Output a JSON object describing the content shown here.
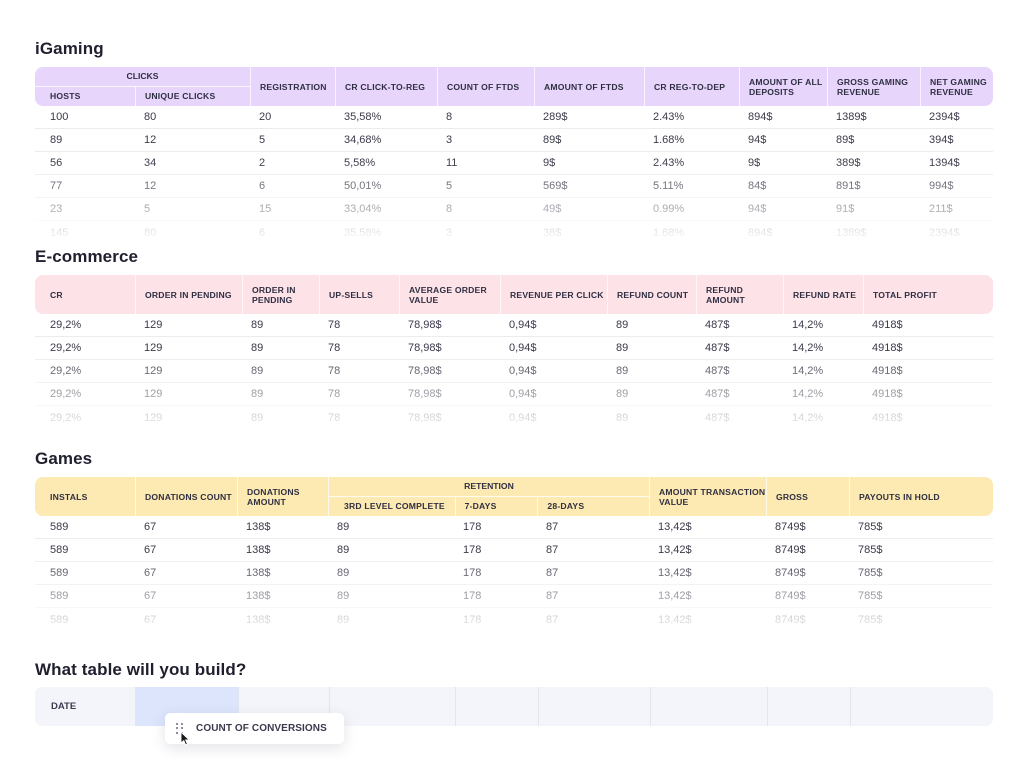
{
  "igaming": {
    "title": "iGaming",
    "clicks_group": "CLICKS",
    "headers": [
      "HOSTS",
      "UNIQUE CLICKS",
      "REGISTRATION",
      "CR CLICK-TO-REG",
      "COUNT OF FTDS",
      "AMOUNT OF FTDS",
      "CR REG-TO-DEP",
      "AMOUNT OF ALL DEPOSITS",
      "GROSS GAMING REVENUE",
      "NET GAMING REVENUE"
    ],
    "rows": [
      [
        "100",
        "80",
        "20",
        "35,58%",
        "8",
        "289$",
        "2.43%",
        "894$",
        "1389$",
        "2394$"
      ],
      [
        "89",
        "12",
        "5",
        "34,68%",
        "3",
        "89$",
        "1.68%",
        "94$",
        "89$",
        "394$"
      ],
      [
        "56",
        "34",
        "2",
        "5,58%",
        "11",
        "9$",
        "2.43%",
        "9$",
        "389$",
        "1394$"
      ],
      [
        "77",
        "12",
        "6",
        "50,01%",
        "5",
        "569$",
        "5.11%",
        "84$",
        "891$",
        "994$"
      ],
      [
        "23",
        "5",
        "15",
        "33,04%",
        "8",
        "49$",
        "0.99%",
        "94$",
        "91$",
        "211$"
      ],
      [
        "145",
        "80",
        "6",
        "35,58%",
        "3",
        "38$",
        "1,68%",
        "894$",
        "1389$",
        "2394$"
      ]
    ]
  },
  "ecommerce": {
    "title": "E-commerce",
    "headers": [
      "CR",
      "ORDER IN PENDING",
      "ORDER IN PENDING",
      "UP-SELLS",
      "AVERAGE ORDER VALUE",
      "REVENUE PER CLICK",
      "REFUND COUNT",
      "REFUND AMOUNT",
      "REFUND RATE",
      "TOTAL PROFIT"
    ],
    "rows": [
      [
        "29,2%",
        "129",
        "89",
        "78",
        "78,98$",
        "0,94$",
        "89",
        "487$",
        "14,2%",
        "4918$"
      ],
      [
        "29,2%",
        "129",
        "89",
        "78",
        "78,98$",
        "0,94$",
        "89",
        "487$",
        "14,2%",
        "4918$"
      ],
      [
        "29,2%",
        "129",
        "89",
        "78",
        "78,98$",
        "0,94$",
        "89",
        "487$",
        "14,2%",
        "4918$"
      ],
      [
        "29,2%",
        "129",
        "89",
        "78",
        "78,98$",
        "0,94$",
        "89",
        "487$",
        "14,2%",
        "4918$"
      ],
      [
        "29,2%",
        "129",
        "89",
        "78",
        "78,98$",
        "0,94$",
        "89",
        "487$",
        "14,2%",
        "4918$"
      ]
    ]
  },
  "games": {
    "title": "Games",
    "retention_group": "RETENTION",
    "headers": [
      "INSTALS",
      "DONATIONS COUNT",
      "DONATIONS AMOUNT",
      "3RD LEVEL COMPLETE",
      "7-DAYS",
      "28-DAYS",
      "AMOUNT TRANSACTION VALUE",
      "GROSS",
      "PAYOUTS IN HOLD"
    ],
    "rows": [
      [
        "589",
        "67",
        "138$",
        "89",
        "178",
        "87",
        "13,42$",
        "8749$",
        "785$"
      ],
      [
        "589",
        "67",
        "138$",
        "89",
        "178",
        "87",
        "13,42$",
        "8749$",
        "785$"
      ],
      [
        "589",
        "67",
        "138$",
        "89",
        "178",
        "87",
        "13,42$",
        "8749$",
        "785$"
      ],
      [
        "589",
        "67",
        "138$",
        "89",
        "178",
        "87",
        "13,42$",
        "8749$",
        "785$"
      ],
      [
        "589",
        "67",
        "138$",
        "89",
        "178",
        "87",
        "13,42$",
        "8749$",
        "785$"
      ]
    ]
  },
  "builder": {
    "title": "What table will you build?",
    "date_label": "DATE",
    "drag_chip_label": "COUNT OF CONVERSIONS"
  },
  "colors": {
    "igaming_header": "#e7d5fb",
    "ecommerce_header": "#fde2e8",
    "games_header": "#fde9b2",
    "builder_slot": "#dde5fd"
  }
}
